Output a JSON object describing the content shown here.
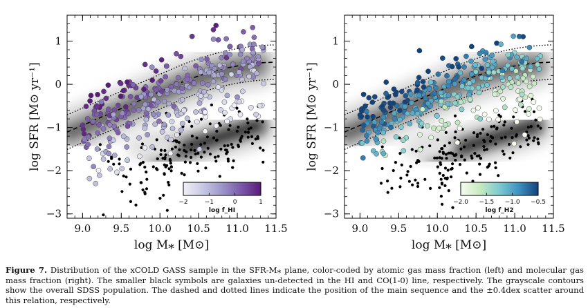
{
  "caption": {
    "label": "Figure 7.",
    "text": "Distribution of the xCOLD GASS sample in the SFR-M⁎ plane, color-coded by atomic gas mass fraction (left) and molecular gas mass fraction (right). The smaller black symbols are galaxies un-detected in the HI and CO(1-0) line, respectively. The grayscale contours show the overall SDSS population. The dashed and dotted lines indicate the position of the main sequence and the ±0.4dex scatter around this relation, respectively."
  },
  "colors": {
    "hi_colormap": [
      "#f0f0f6",
      "#c7c9e2",
      "#9b96c8",
      "#7b58a8",
      "#5a1a7a"
    ],
    "h2_colormap": [
      "#f7fcf0",
      "#c7eac0",
      "#7ccad0",
      "#3e91c0",
      "#11427e"
    ],
    "undetected": "#000000"
  },
  "chart_data": [
    {
      "type": "scatter",
      "panel": "left",
      "xlabel": "log M⁎ [M⊙]",
      "ylabel": "log SFR [M⊙ yr⁻¹]",
      "xlim": [
        8.8,
        11.5
      ],
      "ylim": [
        -3.1,
        1.6
      ],
      "xticks": [
        "9.0",
        "9.5",
        "10.0",
        "10.5",
        "11.0",
        "11.5"
      ],
      "yticks": [
        "−3",
        "−2",
        "−1",
        "0",
        "1"
      ],
      "colorbar": {
        "label": "log f_HI",
        "ticks": [
          "−2",
          "−1",
          "0",
          "1"
        ],
        "range": [
          -2,
          1
        ],
        "placement": "bottom-right"
      },
      "main_sequence": {
        "style": "dashed",
        "scatter_dex": 0.4
      }
    },
    {
      "type": "scatter",
      "panel": "right",
      "xlabel": "log M⁎ [M⊙]",
      "ylabel": "log SFR [M⊙ yr⁻¹]",
      "xlim": [
        8.8,
        11.5
      ],
      "ylim": [
        -3.1,
        1.6
      ],
      "xticks": [
        "9.0",
        "9.5",
        "10.0",
        "10.5",
        "11.0",
        "11.5"
      ],
      "yticks": [
        "−3",
        "−2",
        "−1",
        "0",
        "1"
      ],
      "colorbar": {
        "label": "log f_H2",
        "ticks": [
          "−2.0",
          "−1.5",
          "−1.0",
          "−0.5"
        ],
        "range": [
          -2.0,
          -0.5
        ],
        "placement": "bottom-right"
      },
      "main_sequence": {
        "style": "dashed",
        "scatter_dex": 0.4
      }
    }
  ]
}
